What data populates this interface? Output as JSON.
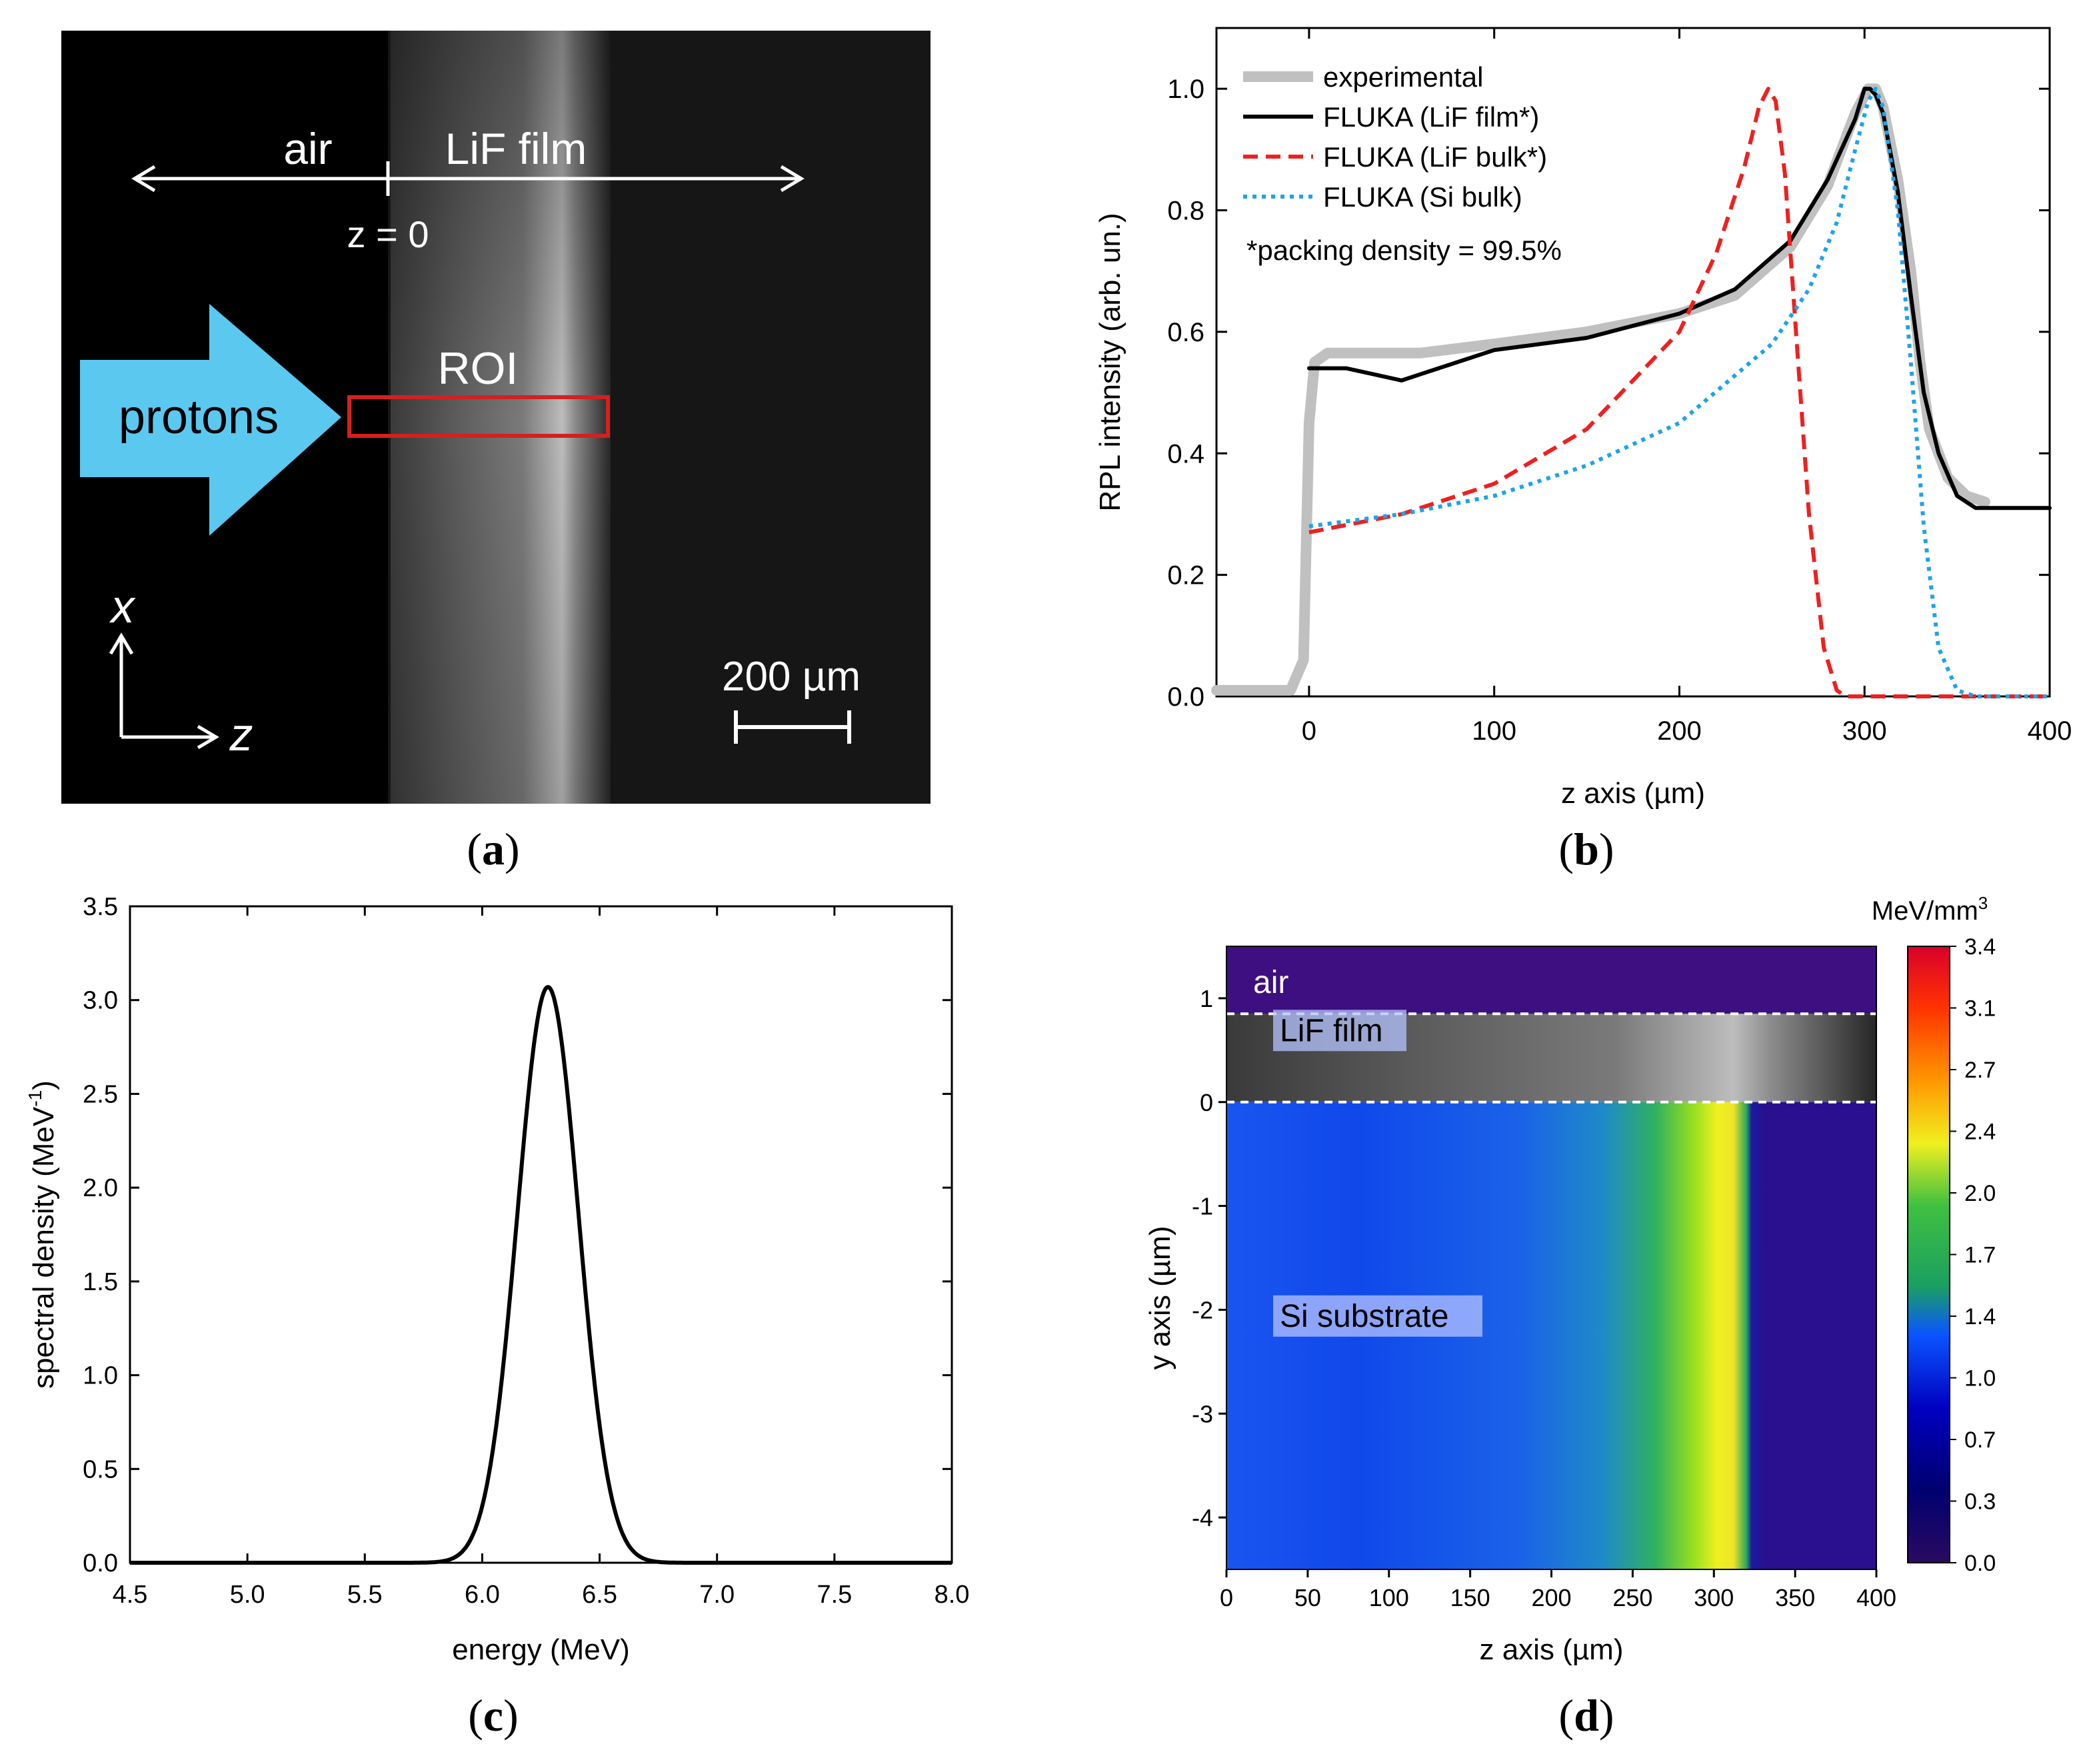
{
  "panel_a": {
    "caption_letter": "a",
    "labels": {
      "air": "air",
      "film": "LiF film",
      "z0": "z = 0",
      "roi": "ROI",
      "protons": "protons",
      "x_axis": "x",
      "z_axis": "z",
      "scale": "200 µm"
    },
    "colors": {
      "arrow": "#5bc8f0",
      "roi": "#d42020",
      "background": "#000000"
    }
  },
  "panel_b": {
    "caption_letter": "b",
    "note": "*packing density = 99.5%",
    "chart_data": {
      "type": "line",
      "xlabel": "z axis (µm)",
      "ylabel": "RPL intensity (arb. un.)",
      "xlim": [
        -50,
        400
      ],
      "ylim": [
        0,
        1.1
      ],
      "xticks": [
        0,
        100,
        200,
        300,
        400
      ],
      "yticks": [
        0.0,
        0.2,
        0.4,
        0.6,
        0.8,
        1.0
      ],
      "legend_position": "top-left",
      "series": [
        {
          "name": "experimental",
          "color": "#c0c0c0",
          "style": "thick",
          "x": [
            -50,
            -10,
            -3,
            0,
            3,
            10,
            30,
            60,
            100,
            150,
            200,
            230,
            260,
            280,
            295,
            302,
            306,
            310,
            318,
            325,
            330,
            335,
            345,
            355,
            365
          ],
          "y": [
            0.01,
            0.01,
            0.06,
            0.45,
            0.55,
            0.565,
            0.565,
            0.565,
            0.58,
            0.6,
            0.63,
            0.66,
            0.74,
            0.84,
            0.96,
            1.0,
            1.0,
            0.97,
            0.85,
            0.7,
            0.55,
            0.44,
            0.36,
            0.33,
            0.32
          ]
        },
        {
          "name": "FLUKA (LiF film*)",
          "color": "#000000",
          "style": "solid",
          "x": [
            0,
            20,
            35,
            50,
            60,
            80,
            100,
            150,
            200,
            230,
            260,
            280,
            295,
            300,
            303,
            306,
            310,
            318,
            325,
            332,
            340,
            350,
            360,
            380,
            400
          ],
          "y": [
            0.54,
            0.54,
            0.53,
            0.52,
            0.53,
            0.55,
            0.57,
            0.59,
            0.63,
            0.67,
            0.75,
            0.85,
            0.95,
            1.0,
            1.0,
            0.99,
            0.96,
            0.83,
            0.66,
            0.5,
            0.4,
            0.33,
            0.31,
            0.31,
            0.31
          ]
        },
        {
          "name": "FLUKA (LiF bulk*)",
          "color": "#ee2020",
          "style": "dashed",
          "x": [
            0,
            50,
            100,
            150,
            200,
            220,
            235,
            243,
            248,
            252,
            257,
            263,
            270,
            278,
            285,
            290,
            300,
            400
          ],
          "y": [
            0.27,
            0.3,
            0.35,
            0.44,
            0.6,
            0.73,
            0.87,
            0.97,
            1.0,
            0.98,
            0.86,
            0.6,
            0.3,
            0.08,
            0.01,
            0.0,
            0.0,
            0.0
          ]
        },
        {
          "name": "FLUKA (Si bulk)",
          "color": "#1ea3e8",
          "style": "dotted",
          "x": [
            0,
            50,
            100,
            150,
            200,
            250,
            270,
            285,
            295,
            302,
            306,
            310,
            318,
            325,
            332,
            340,
            350,
            360,
            400
          ],
          "y": [
            0.28,
            0.3,
            0.33,
            0.38,
            0.45,
            0.58,
            0.67,
            0.78,
            0.9,
            0.98,
            1.0,
            0.97,
            0.8,
            0.55,
            0.28,
            0.08,
            0.01,
            0.0,
            0.0
          ]
        }
      ]
    }
  },
  "panel_c": {
    "caption_letter": "c",
    "chart_data": {
      "type": "line",
      "xlabel": "energy (MeV)",
      "ylabel": "spectral density (MeV",
      "ylabel_sup": "-1",
      "ylabel_end": ")",
      "xlim": [
        4.5,
        8.0
      ],
      "ylim": [
        0,
        3.5
      ],
      "xticks": [
        4.5,
        5.0,
        5.5,
        6.0,
        6.5,
        7.0,
        7.5,
        8.0
      ],
      "yticks": [
        0.0,
        0.5,
        1.0,
        1.5,
        2.0,
        2.5,
        3.0,
        3.5
      ],
      "series": [
        {
          "color": "#000000",
          "style": "solid",
          "gaussian": {
            "peak": 3.07,
            "center": 6.28,
            "sigma": 0.13
          }
        }
      ]
    }
  },
  "panel_d": {
    "caption_letter": "d",
    "labels": {
      "air": "air",
      "film": "LiF film",
      "substrate": "Si substrate"
    },
    "colorbar_unit": "MeV/mm",
    "colorbar_unit_sup": "3",
    "colorbar_ticks": [
      "3.4",
      "3.1",
      "2.7",
      "2.4",
      "2.0",
      "1.7",
      "1.4",
      "1.0",
      "0.7",
      "0.3",
      "0.0"
    ],
    "chart_data": {
      "type": "heatmap",
      "xlabel": "z axis (µm)",
      "ylabel": "y axis (µm)",
      "xlim": [
        0,
        400
      ],
      "ylim": [
        -4.5,
        1.5
      ],
      "xticks": [
        0,
        50,
        100,
        150,
        200,
        250,
        300,
        350,
        400
      ],
      "yticks": [
        1,
        0,
        -1,
        -2,
        -3,
        -4
      ],
      "film_boundaries_y": [
        0.85,
        0
      ],
      "clim": [
        0,
        3.4
      ]
    }
  }
}
